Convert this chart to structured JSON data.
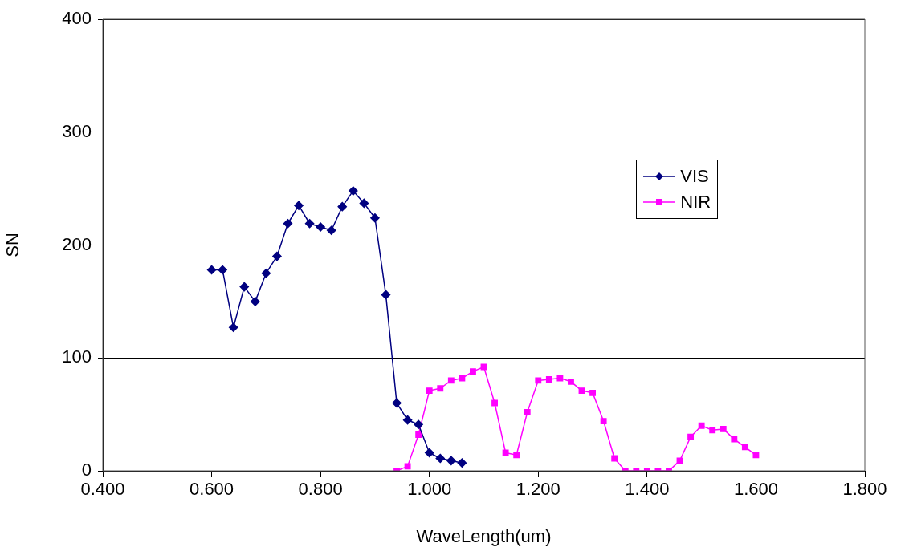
{
  "chart_data": {
    "type": "line",
    "xlabel": "WaveLength(um)",
    "ylabel": "SN",
    "xlim": [
      0.4,
      1.8
    ],
    "xticks": [
      {
        "value": 0.4,
        "label": "0.400"
      },
      {
        "value": 0.6,
        "label": "0.600"
      },
      {
        "value": 0.8,
        "label": "0.800"
      },
      {
        "value": 1.0,
        "label": "1.000"
      },
      {
        "value": 1.2,
        "label": "1.200"
      },
      {
        "value": 1.4,
        "label": "1.400"
      },
      {
        "value": 1.6,
        "label": "1.600"
      },
      {
        "value": 1.8,
        "label": "1.800"
      }
    ],
    "ylim": [
      0,
      400
    ],
    "yticks": [
      0,
      100,
      200,
      300,
      400
    ],
    "grid": "y",
    "legend": "right",
    "line_style": "solid",
    "series": [
      {
        "name": "VIS",
        "color": "#000080",
        "marker": "diamond",
        "x": [
          0.6,
          0.62,
          0.64,
          0.66,
          0.68,
          0.7,
          0.72,
          0.74,
          0.76,
          0.78,
          0.8,
          0.82,
          0.84,
          0.86,
          0.88,
          0.9,
          0.92,
          0.94,
          0.96,
          0.98,
          1.0,
          1.02,
          1.04,
          1.06
        ],
        "values": [
          178,
          178,
          127,
          163,
          150,
          175,
          190,
          219,
          235,
          219,
          216,
          213,
          234,
          248,
          237,
          224,
          156,
          60,
          45,
          41,
          16,
          11,
          9,
          7
        ]
      },
      {
        "name": "NIR",
        "color": "#ff00ff",
        "marker": "square",
        "x": [
          0.94,
          0.96,
          0.98,
          1.0,
          1.02,
          1.04,
          1.06,
          1.08,
          1.1,
          1.12,
          1.14,
          1.16,
          1.18,
          1.2,
          1.22,
          1.24,
          1.26,
          1.28,
          1.3,
          1.32,
          1.34,
          1.36,
          1.38,
          1.4,
          1.42,
          1.44,
          1.46,
          1.48,
          1.5,
          1.52,
          1.54,
          1.56,
          1.58,
          1.6
        ],
        "values": [
          0,
          4,
          32,
          71,
          73,
          80,
          82,
          88,
          92,
          60,
          16,
          14,
          52,
          80,
          81,
          82,
          79,
          71,
          69,
          44,
          11,
          0,
          0,
          0,
          0,
          0,
          9,
          30,
          40,
          36,
          37,
          28,
          21,
          14
        ]
      }
    ]
  }
}
